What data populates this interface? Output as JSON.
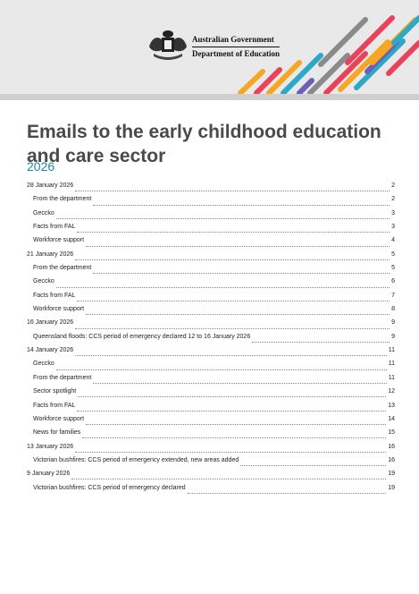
{
  "header": {
    "org_line1": "Australian Government",
    "org_line2": "Department of Education",
    "crest_icon": "coat-of-arms-icon",
    "stripe_colors": [
      "#f5a623",
      "#e8435a",
      "#2ea8c7",
      "#8a8a8a",
      "#6d5fb3"
    ]
  },
  "document": {
    "title": "Emails to the early childhood education and care sector",
    "year": "2026"
  },
  "toc": [
    {
      "level": 1,
      "text": "28 January 2026",
      "page": "2"
    },
    {
      "level": 2,
      "text": "From the department",
      "page": "2"
    },
    {
      "level": 2,
      "text": "Geccko",
      "page": "3"
    },
    {
      "level": 2,
      "text": "Facts from FAL",
      "page": "3"
    },
    {
      "level": 2,
      "text": "Workforce support",
      "page": "4"
    },
    {
      "level": 1,
      "text": "21 January 2026",
      "page": "5"
    },
    {
      "level": 2,
      "text": "From the department",
      "page": "5"
    },
    {
      "level": 2,
      "text": "Geccko",
      "page": "6"
    },
    {
      "level": 2,
      "text": "Facts from FAL",
      "page": "7"
    },
    {
      "level": 2,
      "text": "Workforce support",
      "page": "8"
    },
    {
      "level": 1,
      "text": "16 January 2026",
      "page": "9"
    },
    {
      "level": 2,
      "text": "Queensland floods: CCS period of emergency declared 12 to 16 January 2026",
      "page": "9"
    },
    {
      "level": 1,
      "text": "14 January 2026",
      "page": "11"
    },
    {
      "level": 2,
      "text": "Geccko",
      "page": "11"
    },
    {
      "level": 2,
      "text": "From the department",
      "page": "11"
    },
    {
      "level": 2,
      "text": "Sector spotlight",
      "page": "12"
    },
    {
      "level": 2,
      "text": "Facts from FAL",
      "page": "13"
    },
    {
      "level": 2,
      "text": "Workforce support",
      "page": "14"
    },
    {
      "level": 2,
      "text": "News for families",
      "page": "15"
    },
    {
      "level": 1,
      "text": "13 January 2026",
      "page": "16"
    },
    {
      "level": 2,
      "text": "Victorian bushfires: CCS period of emergency extended, new areas added",
      "page": "16"
    },
    {
      "level": 1,
      "text": "9 January 2026",
      "page": "19"
    },
    {
      "level": 2,
      "text": "Victorian bushfires: CCS period of emergency declared",
      "page": "19"
    }
  ]
}
